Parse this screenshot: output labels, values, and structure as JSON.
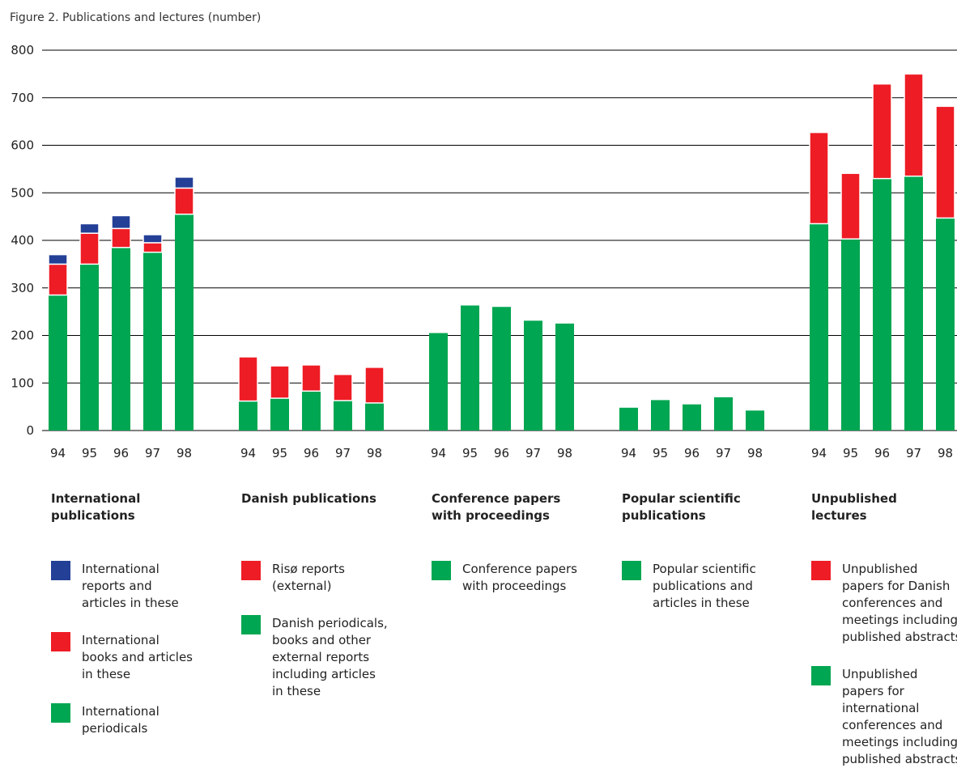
{
  "title": "Figure 2. Publications and lectures (number)",
  "colors": {
    "blue": "#233f96",
    "red": "#ee1c25",
    "green": "#00a651"
  },
  "chart_data": {
    "type": "bar",
    "stacked": true,
    "ylim": [
      0,
      800
    ],
    "yticks": [
      0,
      100,
      200,
      300,
      400,
      500,
      600,
      700,
      800
    ],
    "grid": true,
    "groups": [
      {
        "label": "International publications",
        "categories": [
          "94",
          "95",
          "96",
          "97",
          "98"
        ],
        "series": [
          {
            "name": "International periodicals",
            "color": "green",
            "values": [
              285,
              350,
              385,
              375,
              455
            ]
          },
          {
            "name": "International books and articles in these",
            "color": "red",
            "values": [
              65,
              65,
              40,
              20,
              55
            ]
          },
          {
            "name": "International reports and articles in these",
            "color": "blue",
            "values": [
              20,
              20,
              27,
              17,
              23
            ]
          }
        ]
      },
      {
        "label": "Danish publications",
        "categories": [
          "94",
          "95",
          "96",
          "97",
          "98"
        ],
        "series": [
          {
            "name": "Danish periodicals, books and other external reports including articles in these",
            "color": "green",
            "values": [
              62,
              68,
              83,
              63,
              58
            ]
          },
          {
            "name": "Risø reports (external)",
            "color": "red",
            "values": [
              93,
              68,
              55,
              55,
              75
            ]
          }
        ]
      },
      {
        "label": "Conference papers with proceedings",
        "categories": [
          "94",
          "95",
          "96",
          "97",
          "98"
        ],
        "series": [
          {
            "name": "Conference papers with proceedings",
            "color": "green",
            "values": [
              205,
              263,
              260,
              231,
              225
            ]
          }
        ]
      },
      {
        "label": "Popular scientific publications",
        "categories": [
          "94",
          "95",
          "96",
          "97",
          "98"
        ],
        "series": [
          {
            "name": "Popular scientific publications and articles in these",
            "color": "green",
            "values": [
              48,
              64,
              55,
              70,
              42
            ]
          }
        ]
      },
      {
        "label": "Unpublished lectures",
        "categories": [
          "94",
          "95",
          "96",
          "97",
          "98"
        ],
        "series": [
          {
            "name": "Unpublished papers for international conferences and meetings including published abstracts",
            "color": "green",
            "values": [
              435,
              403,
              530,
              535,
              447
            ]
          },
          {
            "name": "Unpublished papers for Danish conferences and meetings including published abstracts",
            "color": "red",
            "values": [
              192,
              138,
              199,
              215,
              235
            ]
          }
        ]
      }
    ]
  },
  "legend": [
    {
      "group_label": "International\npublications",
      "items": [
        {
          "color": "blue",
          "text": "International\nreports and\narticles in these"
        },
        {
          "color": "red",
          "text": "International\nbooks and articles\nin these"
        },
        {
          "color": "green",
          "text": "International\nperiodicals"
        }
      ]
    },
    {
      "group_label": "Danish publications",
      "items": [
        {
          "color": "red",
          "text": "Risø reports\n(external)"
        },
        {
          "color": "green",
          "text": "Danish periodicals,\nbooks and other\nexternal reports\nincluding articles\nin these"
        }
      ]
    },
    {
      "group_label": "Conference papers\nwith proceedings",
      "items": [
        {
          "color": "green",
          "text": "Conference papers\nwith proceedings"
        }
      ]
    },
    {
      "group_label": "Popular scientific\npublications",
      "items": [
        {
          "color": "green",
          "text": "Popular scientific\npublications and\narticles in these"
        }
      ]
    },
    {
      "group_label": "Unpublished\nlectures",
      "items": [
        {
          "color": "red",
          "text": "Unpublished\npapers for Danish\nconferences and\nmeetings including\npublished abstracts"
        },
        {
          "color": "green",
          "text": "Unpublished\npapers for\ninternational\nconferences and\nmeetings including\npublished abstracts"
        }
      ]
    }
  ]
}
